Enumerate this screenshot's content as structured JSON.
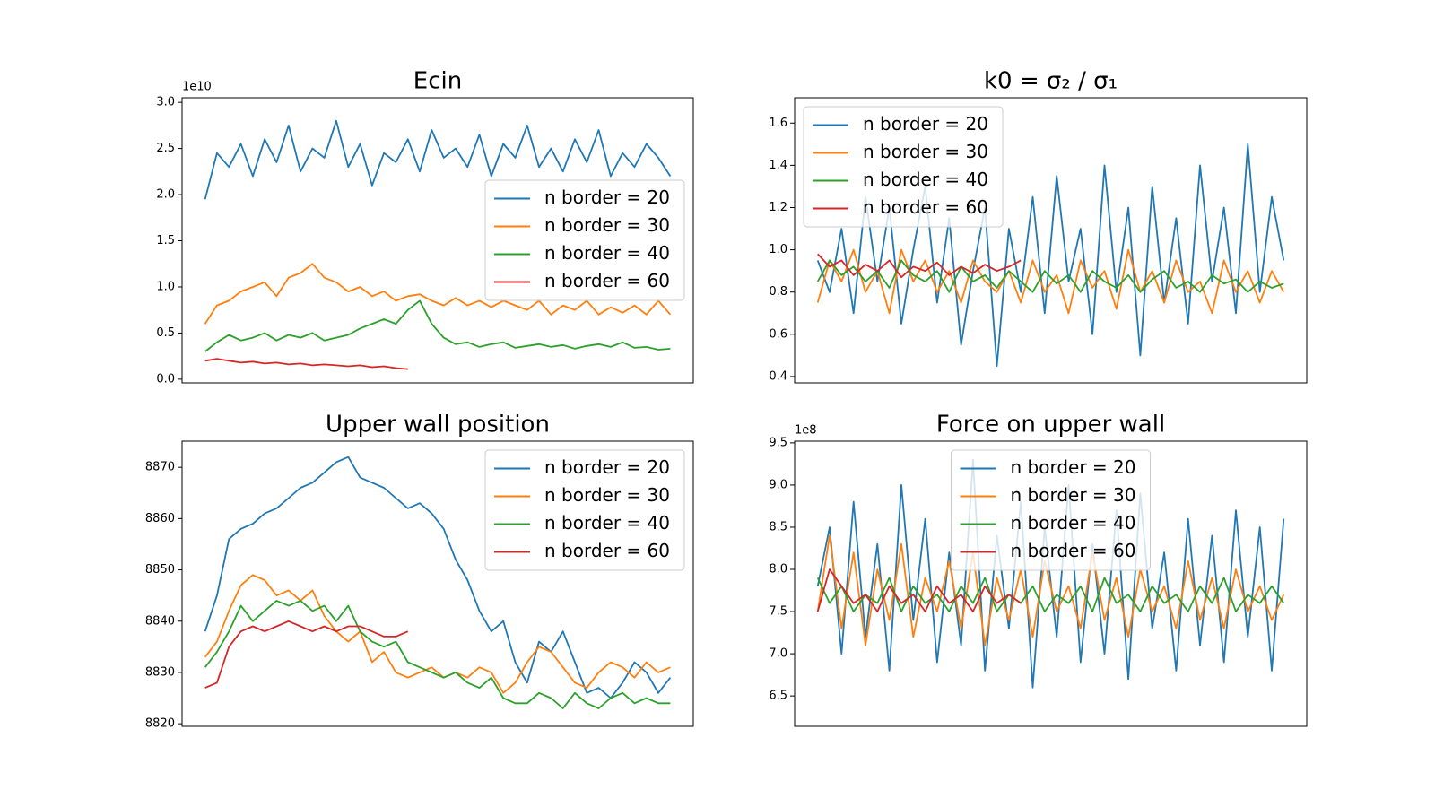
{
  "chart_data": [
    {
      "type": "line",
      "title": "Ecin",
      "y_offset_label": "1e10",
      "legend": "center right",
      "ylim": [
        -0.04,
        3.05
      ],
      "yticks": [
        {
          "value": 0,
          "label": "0.0"
        },
        0.5,
        {
          "value": 1,
          "label": "1.0"
        },
        1.5,
        {
          "value": 2,
          "label": "2.0"
        },
        2.5,
        {
          "value": 3,
          "label": "3.0"
        }
      ],
      "series": [
        {
          "name": "n border = 20",
          "color": "#1f77b4",
          "values": [
            1.95,
            2.45,
            2.3,
            2.55,
            2.2,
            2.6,
            2.35,
            2.75,
            2.25,
            2.5,
            2.4,
            2.8,
            2.3,
            2.55,
            2.1,
            2.45,
            2.35,
            2.6,
            2.25,
            2.7,
            2.4,
            2.5,
            2.3,
            2.65,
            2.2,
            2.55,
            2.4,
            2.75,
            2.3,
            2.5,
            2.25,
            2.6,
            2.35,
            2.7,
            2.2,
            2.45,
            2.3,
            2.55,
            2.4,
            2.2
          ]
        },
        {
          "name": "n border = 30",
          "color": "#ff7f0e",
          "values": [
            0.6,
            0.8,
            0.85,
            0.95,
            1.0,
            1.05,
            0.9,
            1.1,
            1.15,
            1.25,
            1.1,
            1.05,
            0.95,
            1.0,
            0.9,
            0.95,
            0.85,
            0.9,
            0.92,
            0.85,
            0.8,
            0.88,
            0.8,
            0.85,
            0.78,
            0.85,
            0.8,
            0.75,
            0.85,
            0.7,
            0.8,
            0.75,
            0.85,
            0.7,
            0.78,
            0.72,
            0.8,
            0.7,
            0.85,
            0.7
          ]
        },
        {
          "name": "n border = 40",
          "color": "#2ca02c",
          "values": [
            0.3,
            0.4,
            0.48,
            0.42,
            0.45,
            0.5,
            0.42,
            0.48,
            0.45,
            0.5,
            0.42,
            0.45,
            0.48,
            0.55,
            0.6,
            0.65,
            0.6,
            0.75,
            0.85,
            0.6,
            0.45,
            0.38,
            0.4,
            0.35,
            0.38,
            0.4,
            0.34,
            0.36,
            0.38,
            0.35,
            0.37,
            0.33,
            0.36,
            0.38,
            0.35,
            0.4,
            0.34,
            0.35,
            0.32,
            0.33
          ]
        },
        {
          "name": "n border = 60",
          "color": "#d62728",
          "values": [
            0.2,
            0.22,
            0.2,
            0.18,
            0.19,
            0.17,
            0.18,
            0.16,
            0.17,
            0.15,
            0.16,
            0.15,
            0.14,
            0.15,
            0.13,
            0.14,
            0.12,
            0.11
          ]
        }
      ]
    },
    {
      "type": "line",
      "title": "k0 = σ₂ / σ₁",
      "legend": "upper left",
      "ylim": [
        0.37,
        1.72
      ],
      "yticks": [
        0.4,
        0.6,
        0.8,
        {
          "value": 1,
          "label": "1.0"
        },
        1.2,
        1.4,
        1.6
      ],
      "series": [
        {
          "name": "n border = 20",
          "color": "#1f77b4",
          "values": [
            0.95,
            0.8,
            1.1,
            0.7,
            1.25,
            0.85,
            1.2,
            0.65,
            1.0,
            1.3,
            0.75,
            1.15,
            0.55,
            0.9,
            1.2,
            0.45,
            1.1,
            0.8,
            1.25,
            0.7,
            1.35,
            0.85,
            1.1,
            0.6,
            1.4,
            0.8,
            1.2,
            0.5,
            1.3,
            0.75,
            1.15,
            0.65,
            1.4,
            0.85,
            1.2,
            0.7,
            1.5,
            0.8,
            1.25,
            0.95
          ]
        },
        {
          "name": "n border = 30",
          "color": "#ff7f0e",
          "values": [
            0.75,
            0.95,
            0.85,
            1.0,
            0.8,
            0.9,
            0.7,
            1.0,
            0.85,
            0.95,
            0.8,
            0.9,
            0.75,
            0.95,
            0.85,
            0.8,
            0.9,
            0.75,
            0.95,
            0.8,
            0.88,
            0.7,
            0.95,
            0.82,
            0.9,
            0.72,
            1.0,
            0.8,
            0.9,
            0.75,
            0.95,
            0.8,
            0.85,
            0.7,
            0.95,
            0.8,
            0.9,
            0.75,
            0.9,
            0.8
          ]
        },
        {
          "name": "n border = 40",
          "color": "#2ca02c",
          "values": [
            0.85,
            0.95,
            0.88,
            0.92,
            0.85,
            0.9,
            0.82,
            0.95,
            0.88,
            0.85,
            0.9,
            0.8,
            0.92,
            0.85,
            0.88,
            0.82,
            0.9,
            0.85,
            0.8,
            0.9,
            0.84,
            0.88,
            0.8,
            0.9,
            0.85,
            0.82,
            0.88,
            0.8,
            0.86,
            0.9,
            0.82,
            0.85,
            0.8,
            0.88,
            0.84,
            0.86,
            0.8,
            0.85,
            0.82,
            0.84
          ]
        },
        {
          "name": "n border = 60",
          "color": "#d62728",
          "values": [
            0.98,
            0.92,
            0.95,
            0.88,
            0.93,
            0.9,
            0.95,
            0.87,
            0.92,
            0.9,
            0.94,
            0.88,
            0.92,
            0.89,
            0.93,
            0.9,
            0.92,
            0.95
          ]
        }
      ]
    },
    {
      "type": "line",
      "title": "Upper wall position",
      "legend": "upper right",
      "ylim": [
        8819.5,
        8875.1
      ],
      "yticks": [
        8820,
        8830,
        8840,
        8850,
        8860,
        8870
      ],
      "series": [
        {
          "name": "n border = 20",
          "color": "#1f77b4",
          "values": [
            8838,
            8845,
            8856,
            8858,
            8859,
            8861,
            8862,
            8864,
            8866,
            8867,
            8869,
            8871,
            8872,
            8868,
            8867,
            8866,
            8864,
            8862,
            8863,
            8861,
            8858,
            8852,
            8848,
            8842,
            8838,
            8840,
            8832,
            8828,
            8836,
            8834,
            8838,
            8832,
            8826,
            8827,
            8825,
            8828,
            8832,
            8830,
            8826,
            8829
          ]
        },
        {
          "name": "n border = 30",
          "color": "#ff7f0e",
          "values": [
            8833,
            8836,
            8842,
            8847,
            8849,
            8848,
            8845,
            8846,
            8844,
            8846,
            8841,
            8838,
            8836,
            8838,
            8832,
            8834,
            8830,
            8829,
            8830,
            8831,
            8829,
            8830,
            8829,
            8831,
            8830,
            8826,
            8828,
            8832,
            8835,
            8834,
            8831,
            8828,
            8827,
            8830,
            8832,
            8831,
            8829,
            8832,
            8830,
            8831
          ]
        },
        {
          "name": "n border = 40",
          "color": "#2ca02c",
          "values": [
            8831,
            8834,
            8838,
            8843,
            8840,
            8842,
            8844,
            8843,
            8844,
            8842,
            8843,
            8840,
            8843,
            8838,
            8836,
            8835,
            8836,
            8832,
            8831,
            8830,
            8829,
            8830,
            8828,
            8827,
            8829,
            8825,
            8824,
            8824,
            8826,
            8825,
            8823,
            8826,
            8824,
            8823,
            8825,
            8826,
            8824,
            8825,
            8824,
            8824
          ]
        },
        {
          "name": "n border = 60",
          "color": "#d62728",
          "values": [
            8827,
            8828,
            8835,
            8838,
            8839,
            8838,
            8839,
            8840,
            8839,
            8838,
            8839,
            8838,
            8839,
            8839,
            8838,
            8837,
            8837,
            8838
          ]
        }
      ]
    },
    {
      "type": "line",
      "title": "Force on upper wall",
      "y_offset_label": "1e8",
      "legend": "upper center",
      "ylim": [
        6.14,
        9.52
      ],
      "yticks": [
        6.5,
        {
          "value": 7,
          "label": "7.0"
        },
        7.5,
        {
          "value": 8,
          "label": "8.0"
        },
        8.5,
        {
          "value": 9,
          "label": "9.0"
        },
        9.5
      ],
      "series": [
        {
          "name": "n border = 20",
          "color": "#1f77b4",
          "values": [
            7.8,
            8.5,
            7.0,
            8.8,
            7.2,
            8.3,
            6.8,
            9.0,
            7.4,
            8.6,
            6.9,
            8.2,
            7.1,
            9.3,
            6.8,
            8.4,
            7.3,
            8.8,
            6.6,
            8.5,
            7.2,
            9.0,
            6.9,
            8.3,
            7.0,
            8.7,
            6.7,
            8.9,
            7.3,
            8.2,
            6.8,
            8.6,
            7.1,
            8.4,
            6.9,
            8.7,
            7.2,
            8.5,
            6.8,
            8.6
          ]
        },
        {
          "name": "n border = 30",
          "color": "#ff7f0e",
          "values": [
            7.5,
            8.4,
            7.3,
            8.2,
            7.1,
            8.0,
            7.4,
            8.3,
            7.2,
            7.9,
            7.5,
            8.1,
            7.3,
            8.2,
            7.1,
            7.9,
            7.4,
            8.0,
            7.2,
            8.1,
            7.5,
            7.8,
            7.3,
            8.2,
            7.4,
            7.9,
            7.2,
            8.0,
            7.5,
            7.8,
            7.3,
            8.1,
            7.4,
            7.9,
            7.3,
            8.0,
            7.5,
            7.8,
            7.4,
            7.7
          ]
        },
        {
          "name": "n border = 40",
          "color": "#2ca02c",
          "values": [
            7.9,
            7.6,
            7.8,
            7.5,
            7.7,
            7.6,
            7.9,
            7.5,
            7.8,
            7.6,
            7.7,
            7.5,
            7.8,
            7.6,
            7.9,
            7.5,
            7.7,
            7.6,
            7.8,
            7.5,
            7.7,
            7.6,
            7.8,
            7.5,
            7.9,
            7.6,
            7.7,
            7.5,
            7.8,
            7.6,
            7.7,
            7.5,
            7.8,
            7.6,
            7.9,
            7.5,
            7.7,
            7.6,
            7.8,
            7.6
          ]
        },
        {
          "name": "n border = 60",
          "color": "#d62728",
          "values": [
            7.5,
            8.0,
            7.8,
            7.6,
            7.7,
            7.5,
            7.8,
            7.6,
            7.7,
            7.5,
            7.8,
            7.6,
            7.7,
            7.5,
            7.8,
            7.6,
            7.7,
            7.6
          ]
        }
      ]
    }
  ]
}
